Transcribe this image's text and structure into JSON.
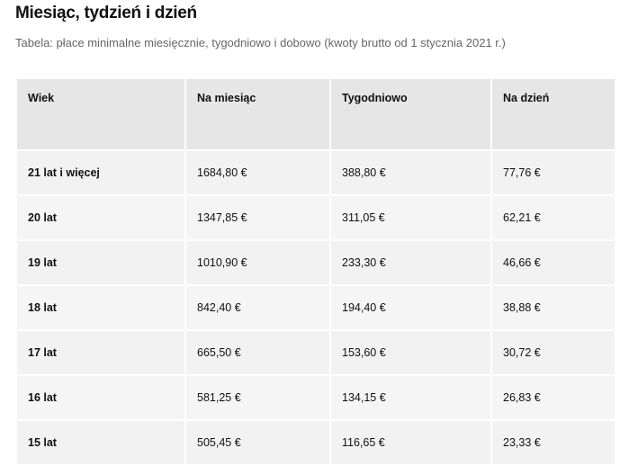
{
  "title": "Miesiąc, tydzień i dzień",
  "subtitle": "Tabela: płace minimalne miesięcznie, tygodniowo i dobowo (kwoty brutto od 1 stycznia 2021 r.)",
  "headers": [
    "Wiek",
    "Na miesiąc",
    "Tygodniowo",
    "Na dzień"
  ],
  "rows": [
    [
      "21 lat i więcej",
      "1684,80 €",
      "388,80 €",
      "77,76 €"
    ],
    [
      "20 lat",
      "1347,85 €",
      "311,05 €",
      "62,21 €"
    ],
    [
      "19 lat",
      "1010,90 €",
      "233,30 €",
      "46,66 €"
    ],
    [
      "18 lat",
      "842,40 €",
      "194,40 €",
      "38,88 €"
    ],
    [
      "17 lat",
      "665,50 €",
      "153,60 €",
      "30,72 €"
    ],
    [
      "16 lat",
      "581,25 €",
      "134,15 €",
      "26,83 €"
    ],
    [
      "15 lat",
      "505,45 €",
      "116,65 €",
      "23,33 €"
    ]
  ]
}
